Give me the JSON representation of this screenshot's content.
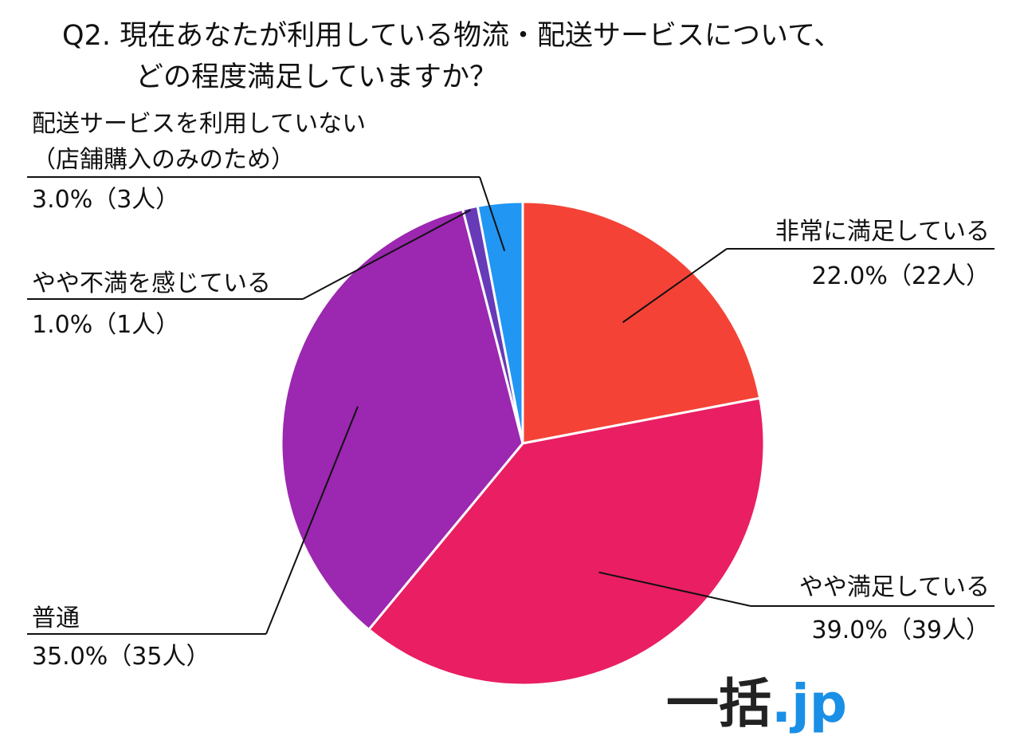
{
  "chart_data": {
    "type": "pie",
    "title_lines": [
      "Q2. 現在あなたが利用している物流・配送サービスについて、",
      "どの程度満足していますか？"
    ],
    "slices": [
      {
        "name_lines": [
          "非常に満足している"
        ],
        "value_label": "22.0%（22人）",
        "percent": 22.0,
        "count": 22,
        "color": "#f44336"
      },
      {
        "name_lines": [
          "やや満足している"
        ],
        "value_label": "39.0%（39人）",
        "percent": 39.0,
        "count": 39,
        "color": "#e91e63"
      },
      {
        "name_lines": [
          "普通"
        ],
        "value_label": "35.0%（35人）",
        "percent": 35.0,
        "count": 35,
        "color": "#9c27b0"
      },
      {
        "name_lines": [
          "やや不満を感じている"
        ],
        "value_label": "1.0%（1人）",
        "percent": 1.0,
        "count": 1,
        "color": "#673ab7"
      },
      {
        "name_lines": [
          "配送サービスを利用していない",
          "（店舗購入のみのため）"
        ],
        "value_label": "3.0%（3人）",
        "percent": 3.0,
        "count": 3,
        "color": "#2196f3"
      }
    ],
    "start_angle": "12 o'clock",
    "direction": "clockwise",
    "legend": "none"
  },
  "logo": {
    "main": "一括",
    "tld": ".jp"
  }
}
